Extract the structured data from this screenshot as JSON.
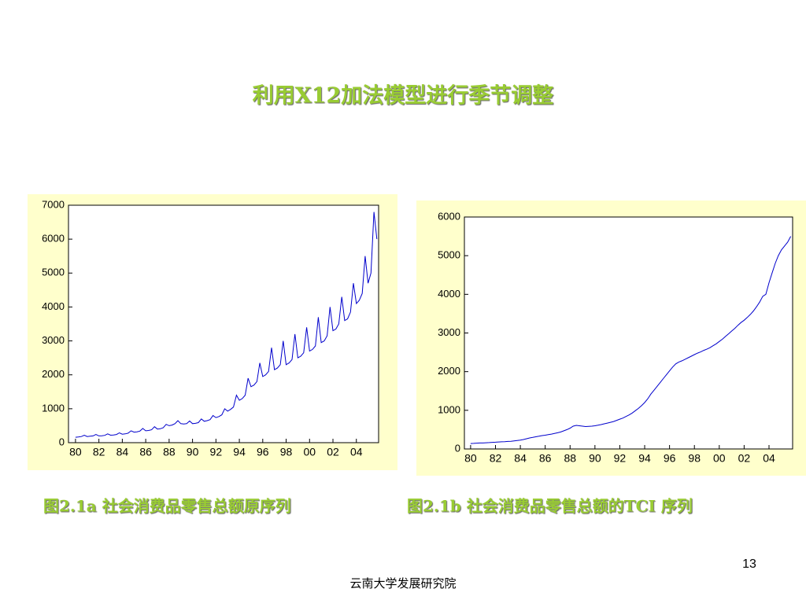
{
  "title": "利用X12加法模型进行季节调整",
  "page_number": "13",
  "footer": "云南大学发展研究院",
  "chart_data": [
    {
      "type": "line",
      "title": "图2.1a   社会消费品零售总额原序列",
      "x": [
        1980,
        1980.25,
        1980.5,
        1980.75,
        1981,
        1981.25,
        1981.5,
        1981.75,
        1982,
        1982.25,
        1982.5,
        1982.75,
        1983,
        1983.25,
        1983.5,
        1983.75,
        1984,
        1984.25,
        1984.5,
        1984.75,
        1985,
        1985.25,
        1985.5,
        1985.75,
        1986,
        1986.25,
        1986.5,
        1986.75,
        1987,
        1987.25,
        1987.5,
        1987.75,
        1988,
        1988.25,
        1988.5,
        1988.75,
        1989,
        1989.25,
        1989.5,
        1989.75,
        1990,
        1990.25,
        1990.5,
        1990.75,
        1991,
        1991.25,
        1991.5,
        1991.75,
        1992,
        1992.25,
        1992.5,
        1992.75,
        1993,
        1993.25,
        1993.5,
        1993.75,
        1994,
        1994.25,
        1994.5,
        1994.75,
        1995,
        1995.25,
        1995.5,
        1995.75,
        1996,
        1996.25,
        1996.5,
        1996.75,
        1997,
        1997.25,
        1997.5,
        1997.75,
        1998,
        1998.25,
        1998.5,
        1998.75,
        1999,
        1999.25,
        1999.5,
        1999.75,
        2000,
        2000.25,
        2000.5,
        2000.75,
        2001,
        2001.25,
        2001.5,
        2001.75,
        2002,
        2002.25,
        2002.5,
        2002.75,
        2003,
        2003.25,
        2003.5,
        2003.75,
        2004,
        2004.25,
        2004.5,
        2004.75,
        2005,
        2005.25,
        2005.5,
        2005.75
      ],
      "series": [
        {
          "color": "#0000cc",
          "values": [
            160,
            170,
            180,
            220,
            180,
            190,
            200,
            240,
            200,
            205,
            215,
            260,
            220,
            225,
            240,
            290,
            250,
            260,
            280,
            350,
            310,
            320,
            340,
            420,
            350,
            360,
            380,
            470,
            400,
            410,
            440,
            540,
            500,
            520,
            560,
            650,
            560,
            550,
            560,
            640,
            560,
            570,
            590,
            700,
            630,
            650,
            680,
            800,
            740,
            770,
            820,
            1000,
            930,
            980,
            1050,
            1400,
            1250,
            1300,
            1400,
            1900,
            1650,
            1700,
            1800,
            2350,
            1950,
            2000,
            2100,
            2800,
            2150,
            2200,
            2300,
            3000,
            2300,
            2350,
            2450,
            3200,
            2500,
            2550,
            2650,
            3400,
            2700,
            2750,
            2850,
            3700,
            2950,
            3000,
            3150,
            4000,
            3300,
            3350,
            3500,
            4300,
            3600,
            3650,
            3850,
            4700,
            4100,
            4200,
            4400,
            5500,
            4700,
            5000,
            6800,
            6000
          ]
        }
      ],
      "xlim": [
        1979.4,
        2005.9
      ],
      "ylim": [
        0,
        7000
      ],
      "xticks": [
        {
          "value": 1980,
          "label": "80"
        },
        {
          "value": 1982,
          "label": "82"
        },
        {
          "value": 1984,
          "label": "84"
        },
        {
          "value": 1986,
          "label": "86"
        },
        {
          "value": 1988,
          "label": "88"
        },
        {
          "value": 1990,
          "label": "90"
        },
        {
          "value": 1992,
          "label": "92"
        },
        {
          "value": 1994,
          "label": "94"
        },
        {
          "value": 1996,
          "label": "96"
        },
        {
          "value": 1998,
          "label": "98"
        },
        {
          "value": 2000,
          "label": "00"
        },
        {
          "value": 2002,
          "label": "02"
        },
        {
          "value": 2004,
          "label": "04"
        }
      ],
      "yticks": [
        0,
        1000,
        2000,
        3000,
        4000,
        5000,
        6000,
        7000
      ]
    },
    {
      "type": "line",
      "title": "图2.1b   社会消费品零售总额的TCI 序列",
      "x": [
        1980,
        1980.25,
        1980.5,
        1980.75,
        1981,
        1981.25,
        1981.5,
        1981.75,
        1982,
        1982.25,
        1982.5,
        1982.75,
        1983,
        1983.25,
        1983.5,
        1983.75,
        1984,
        1984.25,
        1984.5,
        1984.75,
        1985,
        1985.25,
        1985.5,
        1985.75,
        1986,
        1986.25,
        1986.5,
        1986.75,
        1987,
        1987.25,
        1987.5,
        1987.75,
        1988,
        1988.25,
        1988.5,
        1988.75,
        1989,
        1989.25,
        1989.5,
        1989.75,
        1990,
        1990.25,
        1990.5,
        1990.75,
        1991,
        1991.25,
        1991.5,
        1991.75,
        1992,
        1992.25,
        1992.5,
        1992.75,
        1993,
        1993.25,
        1993.5,
        1993.75,
        1994,
        1994.25,
        1994.5,
        1994.75,
        1995,
        1995.25,
        1995.5,
        1995.75,
        1996,
        1996.25,
        1996.5,
        1996.75,
        1997,
        1997.25,
        1997.5,
        1997.75,
        1998,
        1998.25,
        1998.5,
        1998.75,
        1999,
        1999.25,
        1999.5,
        1999.75,
        2000,
        2000.25,
        2000.5,
        2000.75,
        2001,
        2001.25,
        2001.5,
        2001.75,
        2002,
        2002.25,
        2002.5,
        2002.75,
        2003,
        2003.25,
        2003.5,
        2003.75,
        2004,
        2004.25,
        2004.5,
        2004.75,
        2005,
        2005.25,
        2005.5,
        2005.75
      ],
      "series": [
        {
          "color": "#0000cc",
          "values": [
            140,
            145,
            150,
            155,
            155,
            160,
            165,
            170,
            175,
            180,
            185,
            190,
            195,
            200,
            210,
            220,
            230,
            245,
            265,
            285,
            300,
            315,
            330,
            345,
            355,
            370,
            385,
            400,
            420,
            440,
            470,
            500,
            540,
            590,
            610,
            600,
            590,
            580,
            585,
            590,
            600,
            615,
            630,
            650,
            670,
            690,
            710,
            740,
            770,
            800,
            840,
            880,
            930,
            990,
            1050,
            1120,
            1200,
            1300,
            1420,
            1520,
            1620,
            1720,
            1820,
            1920,
            2020,
            2120,
            2200,
            2250,
            2280,
            2320,
            2360,
            2400,
            2440,
            2480,
            2510,
            2550,
            2580,
            2620,
            2670,
            2720,
            2780,
            2840,
            2910,
            2980,
            3050,
            3120,
            3200,
            3270,
            3330,
            3400,
            3480,
            3570,
            3680,
            3800,
            3950,
            4000,
            4300,
            4550,
            4800,
            5000,
            5150,
            5250,
            5350,
            5500
          ]
        }
      ],
      "xlim": [
        1979.5,
        2005.9
      ],
      "ylim": [
        0,
        6000
      ],
      "xticks": [
        {
          "value": 1980,
          "label": "80"
        },
        {
          "value": 1982,
          "label": "82"
        },
        {
          "value": 1984,
          "label": "84"
        },
        {
          "value": 1986,
          "label": "86"
        },
        {
          "value": 1988,
          "label": "88"
        },
        {
          "value": 1990,
          "label": "90"
        },
        {
          "value": 1992,
          "label": "92"
        },
        {
          "value": 1994,
          "label": "94"
        },
        {
          "value": 1996,
          "label": "96"
        },
        {
          "value": 1998,
          "label": "98"
        },
        {
          "value": 2000,
          "label": "00"
        },
        {
          "value": 2002,
          "label": "02"
        },
        {
          "value": 2004,
          "label": "04"
        }
      ],
      "yticks": [
        0,
        1000,
        2000,
        3000,
        4000,
        5000,
        6000
      ]
    }
  ]
}
